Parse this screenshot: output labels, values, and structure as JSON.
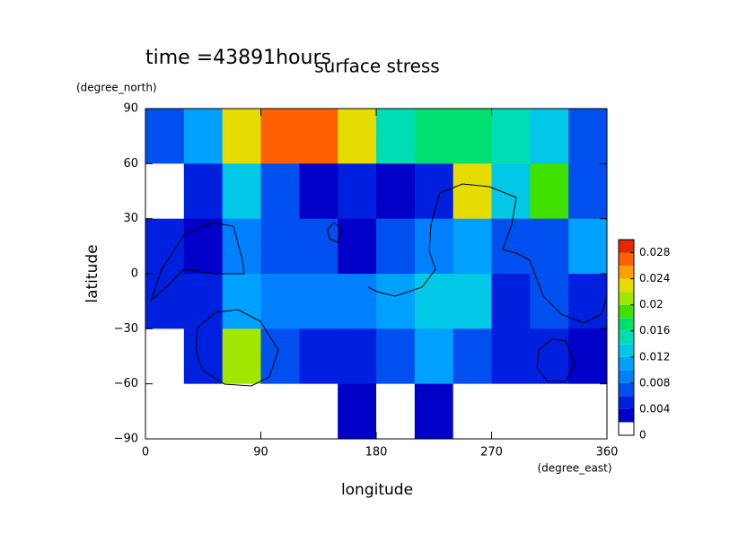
{
  "chart_data": {
    "type": "contour",
    "title": "surface stress",
    "subtitle": "time =43891hours",
    "x_label": "longitude",
    "x_unit": "(degree_east)",
    "y_label": "latitude",
    "y_unit": "(degree_north)",
    "xlim": [
      0,
      360
    ],
    "xticks": [
      0,
      90,
      180,
      270,
      360
    ],
    "ylim": [
      -90,
      90
    ],
    "yticks": [
      {
        "value": -90,
        "label": "−90"
      },
      {
        "value": -60,
        "label": "−60"
      },
      {
        "value": -30,
        "label": "−30"
      },
      0,
      30,
      60,
      90
    ],
    "x": [
      15,
      45,
      75,
      105,
      135,
      165,
      195,
      225,
      255,
      285,
      315,
      345
    ],
    "y": [
      75,
      45,
      15,
      -15,
      -45,
      -75
    ],
    "z": [
      [
        0.006,
        0.01,
        0.022,
        0.026,
        0.026,
        0.022,
        0.014,
        0.016,
        0.016,
        0.014,
        0.012,
        0.006
      ],
      [
        0,
        0.004,
        0.012,
        0.006,
        0.002,
        0.004,
        0.002,
        0.004,
        0.022,
        0.012,
        0.018,
        0.006
      ],
      [
        0.004,
        0.002,
        0.008,
        0.006,
        0.006,
        0.002,
        0.006,
        0.008,
        0.01,
        0.006,
        0.006,
        0.01
      ],
      [
        0.004,
        0.004,
        0.01,
        0.008,
        0.008,
        0.008,
        0.01,
        0.012,
        0.012,
        0.004,
        0.006,
        0.004
      ],
      [
        0,
        0.004,
        0.02,
        0.006,
        0.004,
        0.004,
        0.006,
        0.01,
        0.006,
        0.004,
        0.004,
        0.002
      ],
      [
        0,
        0,
        0,
        0,
        0,
        0.002,
        0,
        0.002,
        0,
        0,
        0,
        0
      ]
    ],
    "levels": [
      0,
      0.002,
      0.004,
      0.006,
      0.008,
      0.01,
      0.012,
      0.014,
      0.016,
      0.018,
      0.02,
      0.022,
      0.024,
      0.026,
      0.028,
      0.03
    ],
    "colors": [
      "#ffffff",
      "#0000c8",
      "#0020e0",
      "#0050f0",
      "#0080ff",
      "#00a0ff",
      "#00c8e6",
      "#00dcb4",
      "#00e070",
      "#40e000",
      "#a0e600",
      "#e6dc00",
      "#ffa000",
      "#ff6000",
      "#e62800"
    ],
    "zlim": [
      0,
      0.03
    ],
    "zticks": [
      0,
      0.004,
      0.008,
      0.012,
      0.016,
      0.02,
      0.024,
      0.028
    ]
  }
}
